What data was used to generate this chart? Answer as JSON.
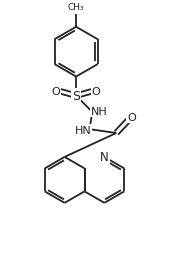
{
  "bg_color": "#ffffff",
  "line_color": "#222222",
  "line_width": 1.3,
  "figsize": [
    1.79,
    2.55
  ],
  "dpi": 100,
  "xlim": [
    0,
    9
  ],
  "ylim": [
    0,
    13
  ]
}
